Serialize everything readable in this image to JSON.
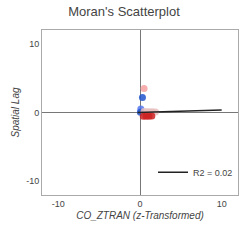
{
  "chart_data": {
    "type": "scatter",
    "title": "Moran's Scatterplot",
    "xlabel": "CO_ZTRAN (z-Transformed)",
    "ylabel": "Spatial Lag",
    "xlim": [
      -12,
      12
    ],
    "ylim": [
      -12,
      12
    ],
    "xticks": [
      -10,
      0,
      10
    ],
    "yticks": [
      -10,
      0,
      10
    ],
    "grid": false,
    "legend": "lower right",
    "series": [
      {
        "type": "scatter",
        "marker": "circle",
        "x": [
          0.5,
          0.3,
          0.1,
          0.05,
          0.5,
          0.85,
          1.2,
          1.55,
          1.9,
          0.4,
          0.75,
          1.1,
          1.45
        ],
        "values": [
          3.5,
          2.2,
          0.5,
          0.05,
          0.15,
          0.12,
          0.1,
          0.1,
          0.08,
          -0.55,
          -0.55,
          -0.55,
          -0.52
        ],
        "colors": [
          "#f4a0a0",
          "#2255cc",
          "#5577ee",
          "#2255cc",
          "#e8c0c0",
          "#e8c0c0",
          "#e8c0c0",
          "#e8c0c0",
          "#e8c0c0",
          "#cc2222",
          "#cc2222",
          "#cc2222",
          "#cc2222"
        ]
      },
      {
        "type": "line",
        "name": "R2 = 0.02",
        "line_style": "solid",
        "x": [
          -0.3,
          10
        ],
        "values": [
          -0.015,
          0.35
        ],
        "color": "#222222"
      }
    ]
  }
}
